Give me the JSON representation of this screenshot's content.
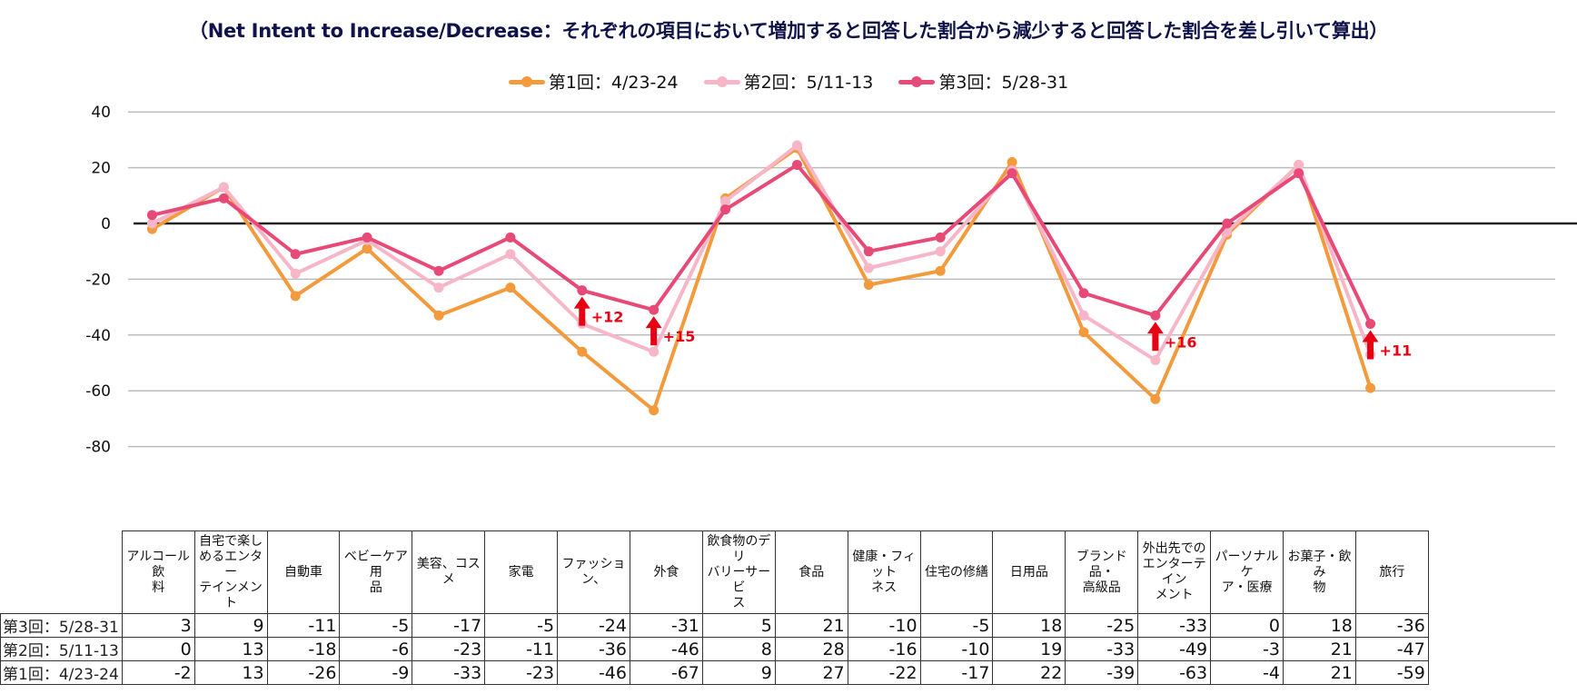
{
  "title": "（Net Intent to Increase/Decrease：それぞれの項目において増加すると回答した割合から減少すると回答した割合を差し引いて算出）",
  "legend": [
    {
      "label": "第1回：4/23-24",
      "color": "#f39a3d"
    },
    {
      "label": "第2回：5/11-13",
      "color": "#f7b6c8"
    },
    {
      "label": "第3回：5/28-31",
      "color": "#e84a78"
    }
  ],
  "chart_data": {
    "type": "line",
    "title": "（Net Intent to Increase/Decrease：それぞれの項目において増加すると回答した割合から減少すると回答した割合を差し引いて算出）",
    "xlabel": "",
    "ylabel": "",
    "ylim": [
      -80,
      40
    ],
    "yticks": [
      "40",
      "20",
      "0",
      "-20",
      "-40",
      "-60",
      "-80"
    ],
    "grid": true,
    "legend_position": "top-center",
    "categories": [
      "アルコール飲料",
      "自宅で楽しめるエンターテインメント",
      "自動車",
      "ベビーケア用品",
      "美容、コスメ",
      "家電",
      "ファッション、",
      "外食",
      "飲食物のデリバリーサービス",
      "食品",
      "健康・フィットネス",
      "住宅の修繕",
      "日用品",
      "ブランド品・高級品",
      "外出先でのエンターテインメント",
      "パーソナルケア・医療",
      "お菓子・飲み物",
      "旅行"
    ],
    "category_labels": [
      [
        "アルコール飲",
        "料"
      ],
      [
        "自宅で楽し",
        "めるエンター",
        "テインメント"
      ],
      [
        "自動車"
      ],
      [
        "ベビーケア用",
        "品"
      ],
      [
        "美容、コスメ"
      ],
      [
        "家電"
      ],
      [
        "ファッション、"
      ],
      [
        "外食"
      ],
      [
        "飲食物のデリ",
        "バリーサービ",
        "ス"
      ],
      [
        "食品"
      ],
      [
        "健康・フィット",
        "ネス"
      ],
      [
        "住宅の修繕"
      ],
      [
        "日用品"
      ],
      [
        "ブランド品・",
        "高級品"
      ],
      [
        "外出先での",
        "エンターテイン",
        "メント"
      ],
      [
        "パーソナルケ",
        "ア・医療"
      ],
      [
        "お菓子・飲み",
        "物"
      ],
      [
        "旅行"
      ]
    ],
    "series": [
      {
        "name": "第1回：4/23-24",
        "color": "#f39a3d",
        "values": [
          -2,
          13,
          -26,
          -9,
          -33,
          -23,
          -46,
          -67,
          9,
          27,
          -22,
          -17,
          22,
          -39,
          -63,
          -4,
          21,
          -59
        ]
      },
      {
        "name": "第2回：5/11-13",
        "color": "#f7b6c8",
        "values": [
          0,
          13,
          -18,
          -6,
          -23,
          -11,
          -36,
          -46,
          8,
          28,
          -16,
          -10,
          19,
          -33,
          -49,
          -3,
          21,
          -47
        ]
      },
      {
        "name": "第3回：5/28-31",
        "color": "#e84a78",
        "values": [
          3,
          9,
          -11,
          -5,
          -17,
          -5,
          -24,
          -31,
          5,
          21,
          -10,
          -5,
          18,
          -25,
          -33,
          0,
          18,
          -36
        ]
      }
    ],
    "annotations": [
      {
        "category_index": 6,
        "text": "+12",
        "color": "#e60012"
      },
      {
        "category_index": 7,
        "text": "+15",
        "color": "#e60012"
      },
      {
        "category_index": 14,
        "text": "+16",
        "color": "#e60012"
      },
      {
        "category_index": 17,
        "text": "+11",
        "color": "#e60012"
      }
    ]
  },
  "table": {
    "row_order": [
      2,
      1,
      0
    ],
    "row_labels": [
      "第3回：5/28-31",
      "第2回：5/11-13",
      "第1回：4/23-24"
    ]
  }
}
